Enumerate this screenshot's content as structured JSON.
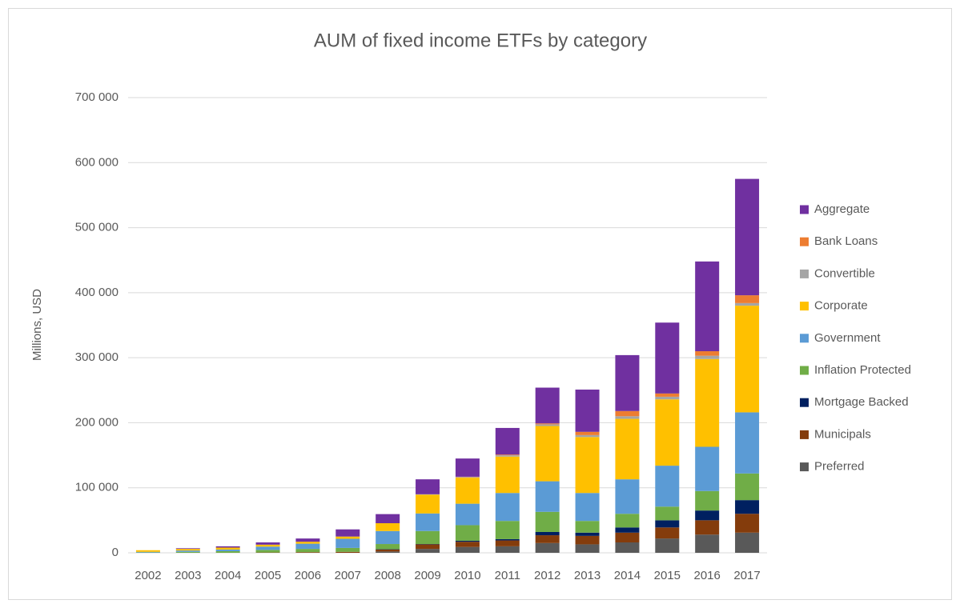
{
  "chart_data": {
    "type": "bar",
    "stacked": true,
    "title": "AUM of fixed income ETFs by category",
    "y_label": "Millions, USD",
    "categories": [
      "2002",
      "2003",
      "2004",
      "2005",
      "2006",
      "2007",
      "2008",
      "2009",
      "2010",
      "2011",
      "2012",
      "2013",
      "2014",
      "2015",
      "2016",
      "2017"
    ],
    "series": [
      {
        "name": "Preferred",
        "color": "#595959",
        "values": [
          0,
          0,
          0,
          0,
          0,
          0,
          2000,
          6000,
          9000,
          10000,
          15000,
          13000,
          16000,
          22000,
          28000,
          31000
        ]
      },
      {
        "name": "Municipals",
        "color": "#843c0c",
        "values": [
          0,
          0,
          0,
          500,
          1000,
          1500,
          3000,
          7000,
          8000,
          9000,
          12000,
          13000,
          15000,
          17000,
          22000,
          29000
        ]
      },
      {
        "name": "Mortgage Backed",
        "color": "#002060",
        "values": [
          0,
          0,
          0,
          0,
          0,
          0,
          500,
          500,
          1500,
          2000,
          5000,
          5000,
          8000,
          11000,
          15000,
          21000
        ]
      },
      {
        "name": "Inflation Protected",
        "color": "#70ad47",
        "values": [
          500,
          1500,
          2500,
          4000,
          5000,
          6000,
          8000,
          20000,
          24000,
          28000,
          31000,
          18000,
          21000,
          21000,
          30000,
          41000
        ]
      },
      {
        "name": "Government",
        "color": "#5b9bd5",
        "values": [
          1000,
          2000,
          2500,
          5000,
          8000,
          14000,
          20000,
          27000,
          33000,
          43000,
          47000,
          43000,
          53000,
          63000,
          68000,
          94000
        ]
      },
      {
        "name": "Corporate",
        "color": "#ffc000",
        "values": [
          2500,
          2500,
          3000,
          3000,
          3000,
          3500,
          12000,
          29000,
          40000,
          56000,
          85000,
          86000,
          93000,
          102000,
          135000,
          164000
        ]
      },
      {
        "name": "Convertible",
        "color": "#a5a5a5",
        "values": [
          0,
          0,
          0,
          0,
          0,
          0,
          0,
          500,
          1000,
          2000,
          2500,
          3000,
          4000,
          4000,
          5000,
          4000
        ]
      },
      {
        "name": "Bank Loans",
        "color": "#ed7d31",
        "values": [
          0,
          0,
          0,
          0,
          0,
          0,
          0,
          0,
          500,
          1000,
          1500,
          5000,
          8000,
          5000,
          7000,
          12000
        ]
      },
      {
        "name": "Aggregate",
        "color": "#7030a0",
        "values": [
          0,
          1000,
          2000,
          3500,
          5000,
          11000,
          14000,
          23000,
          28000,
          41000,
          55000,
          65000,
          86000,
          109000,
          138000,
          179000
        ]
      }
    ],
    "ylim": [
      0,
      700000
    ],
    "yticks": [
      0,
      {
        "value": 100000,
        "label": "100 000"
      },
      {
        "value": 200000,
        "label": "200 000"
      },
      {
        "value": 300000,
        "label": "300 000"
      },
      {
        "value": 400000,
        "label": "400 000"
      },
      {
        "value": 500000,
        "label": "500 000"
      },
      {
        "value": 600000,
        "label": "600 000"
      },
      {
        "value": 700000,
        "label": "700 000"
      }
    ],
    "grid": true,
    "legend": "right"
  }
}
